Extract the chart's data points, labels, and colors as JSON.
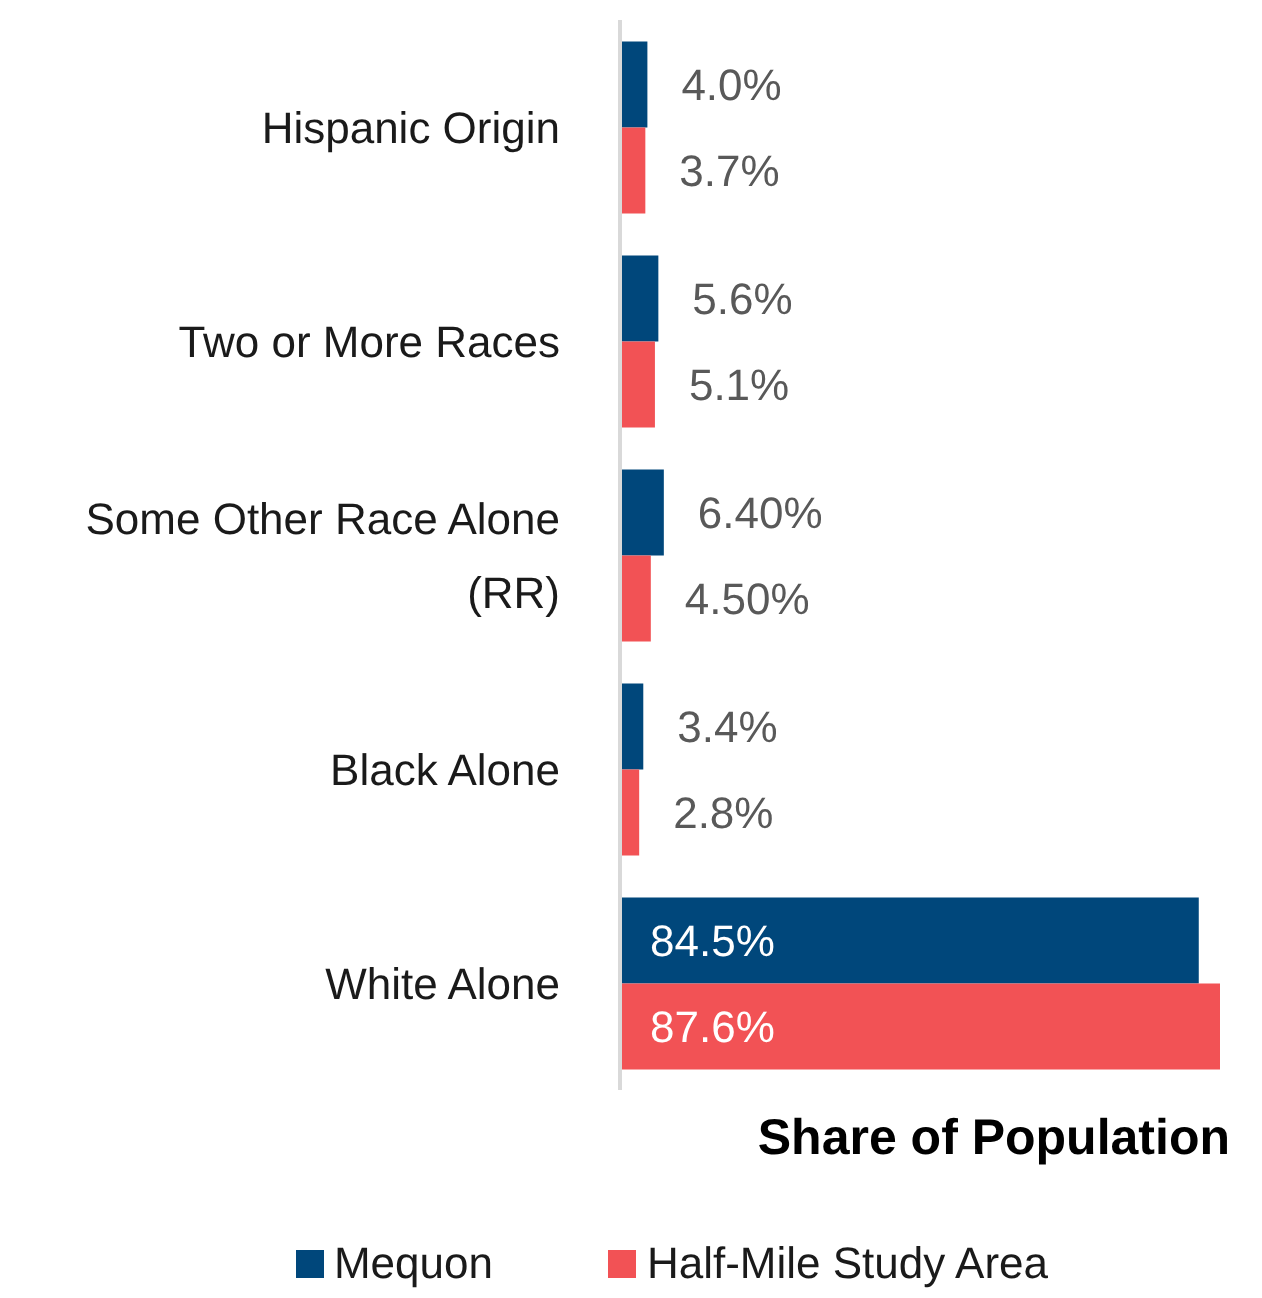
{
  "chart_data": {
    "type": "bar",
    "orientation": "horizontal",
    "xlabel": "Share of Population",
    "categories": [
      "Hispanic Origin",
      "Two or More Races",
      "Some Other Race Alone (RR)",
      "Black Alone",
      "White Alone"
    ],
    "series": [
      {
        "name": "Mequon",
        "color": "#00477b",
        "values": [
          4.0,
          5.6,
          6.4,
          3.4,
          84.5
        ],
        "value_labels": [
          "4.0%",
          "5.6%",
          "6.40%",
          "3.4%",
          "84.5%"
        ]
      },
      {
        "name": "Half-Mile Study Area",
        "color": "#f25255",
        "values": [
          3.7,
          5.1,
          4.5,
          2.8,
          87.6
        ],
        "value_labels": [
          "3.7%",
          "5.1%",
          "4.50%",
          "2.8%",
          "87.6%"
        ]
      }
    ],
    "legend": "bottom",
    "tick_labels": "y"
  }
}
